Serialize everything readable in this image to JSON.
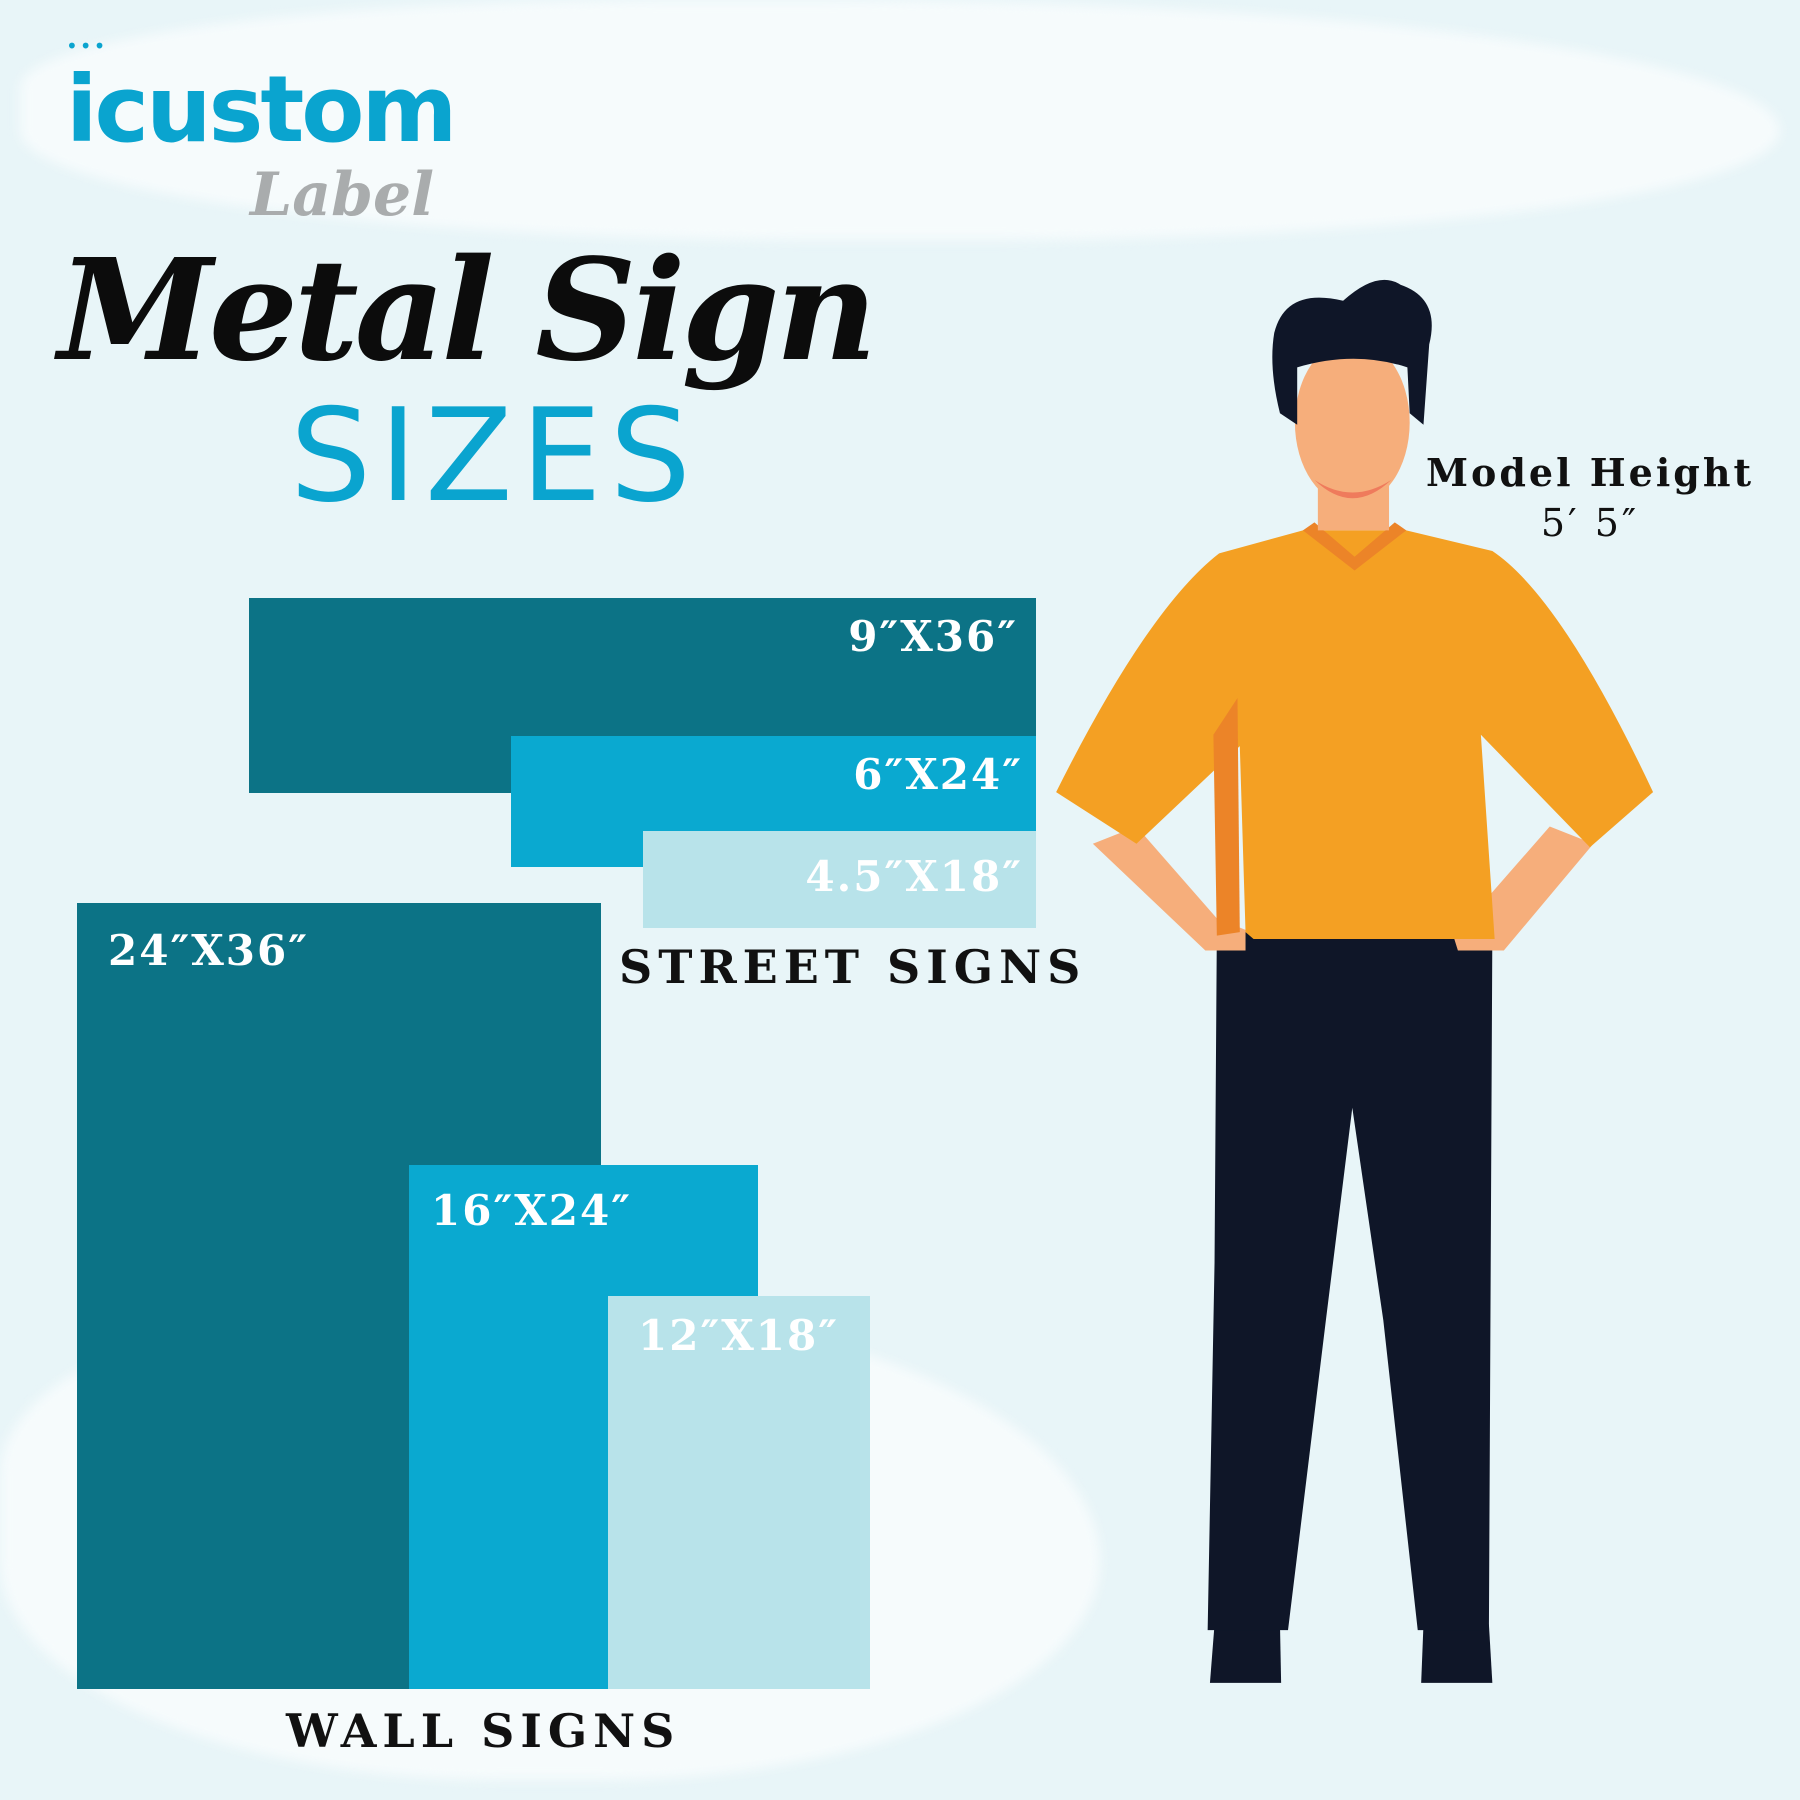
{
  "logo": {
    "brand": "icustom",
    "script": "Label"
  },
  "title": "Metal Sign",
  "subtitle": "SIZES",
  "colors": {
    "dark_teal": "#0c7386",
    "mid_blue": "#0aa9d0",
    "light_blue": "#b8e3ea",
    "background": "#e8f5f8"
  },
  "street_signs": {
    "label": "STREET SIGNS",
    "sizes": [
      "9″X36″",
      "6″X24″",
      "4.5″X18″"
    ]
  },
  "wall_signs": {
    "label": "WALL SIGNS",
    "sizes": [
      "24″X36″",
      "16″X24″",
      "12″X18″"
    ]
  },
  "model": {
    "label": "Model Height",
    "height": "5′ 5″"
  }
}
